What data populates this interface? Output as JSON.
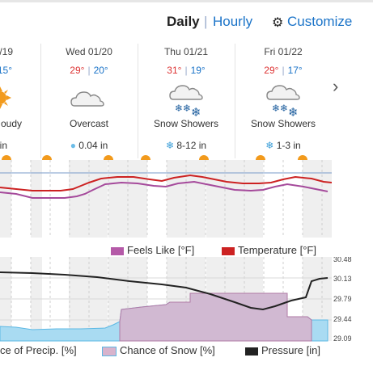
{
  "header": {
    "tabs": [
      {
        "label": "Daily",
        "active": true
      },
      {
        "label": "Hourly",
        "active": false
      }
    ],
    "separator": "|",
    "customize_label": "Customize",
    "customize_icon": "gear-icon"
  },
  "days": [
    {
      "date": "/19",
      "hi": "",
      "lo": "15°",
      "icon": "sun-icon",
      "condition": "oudy",
      "precip": "in",
      "precip_icon": ""
    },
    {
      "date": "Wed 01/20",
      "hi": "29°",
      "lo": "20°",
      "icon": "cloud-icon",
      "condition": "Overcast",
      "precip": "0.04 in",
      "precip_icon": "raindrop-icon"
    },
    {
      "date": "Thu 01/21",
      "hi": "31°",
      "lo": "19°",
      "icon": "snow-cloud-icon",
      "condition": "Snow Showers",
      "precip": "8-12 in",
      "precip_icon": "snowflake-icon"
    },
    {
      "date": "Fri 01/22",
      "hi": "29°",
      "lo": "17°",
      "icon": "snow-cloud-icon",
      "condition": "Snow Showers",
      "precip": "1-3 in",
      "precip_icon": "snowflake-icon"
    }
  ],
  "next_icon": "chevron-right-icon",
  "temp_graph": {
    "legend": [
      {
        "label": "Feels Like [°F]",
        "color": "#b55aa8"
      },
      {
        "label": "Temperature [°F]",
        "color": "#cc2222"
      }
    ]
  },
  "precip_graph": {
    "pressure_axis": [
      "30.48",
      "30.13",
      "29.79",
      "29.44",
      "29.09"
    ],
    "legend": [
      {
        "label": "ce of Precip. [%]",
        "color": "#8fd0ee"
      },
      {
        "label": "Chance of Snow [%]",
        "color": "#d8b3cc"
      },
      {
        "label": "Pressure [in]",
        "color": "#222222"
      }
    ]
  },
  "colors": {
    "accent": "#1a73c8",
    "high_temp": "#dd3333",
    "low_temp": "#1a73c8"
  }
}
